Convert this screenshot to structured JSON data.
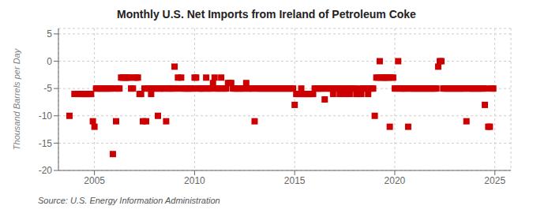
{
  "chart_data": {
    "type": "scatter",
    "title": "Monthly U.S. Net Imports from Ireland of Petroleum Coke",
    "ylabel": "Thousand Barrels per Day",
    "annotation": "Source: U.S. Energy Information Administration",
    "color": "#cc0000",
    "marker": "square",
    "grid": true,
    "xlim": [
      2003.2,
      2025.8
    ],
    "xticks": [
      2005,
      2010,
      2015,
      2020,
      2025
    ],
    "ylim": [
      -20,
      6
    ],
    "yticks": [
      5,
      0,
      -5,
      -10,
      -15,
      -20
    ],
    "x": [
      2003.75,
      2004.0,
      2004.17,
      2004.33,
      2004.42,
      2004.5,
      2004.58,
      2004.67,
      2004.75,
      2004.83,
      2004.92,
      2005.0,
      2005.08,
      2005.17,
      2005.25,
      2005.33,
      2005.42,
      2005.5,
      2005.58,
      2005.67,
      2005.75,
      2005.83,
      2005.92,
      2006.0,
      2006.08,
      2006.17,
      2006.25,
      2006.33,
      2006.42,
      2006.5,
      2006.58,
      2006.67,
      2006.75,
      2006.83,
      2006.92,
      2007.0,
      2007.08,
      2007.17,
      2007.25,
      2007.33,
      2007.42,
      2007.5,
      2007.58,
      2007.67,
      2007.75,
      2007.83,
      2007.92,
      2008.0,
      2008.08,
      2008.17,
      2008.25,
      2008.33,
      2008.42,
      2008.5,
      2008.58,
      2008.67,
      2008.75,
      2008.83,
      2008.92,
      2009.0,
      2009.08,
      2009.17,
      2009.25,
      2009.33,
      2009.42,
      2009.5,
      2009.58,
      2009.67,
      2009.75,
      2009.83,
      2009.92,
      2010.0,
      2010.08,
      2010.17,
      2010.25,
      2010.33,
      2010.42,
      2010.5,
      2010.58,
      2010.67,
      2010.75,
      2010.83,
      2010.92,
      2011.0,
      2011.08,
      2011.17,
      2011.25,
      2011.33,
      2011.42,
      2011.5,
      2011.58,
      2011.67,
      2011.75,
      2011.83,
      2011.92,
      2012.0,
      2012.08,
      2012.17,
      2012.25,
      2012.33,
      2012.42,
      2012.5,
      2012.58,
      2012.67,
      2012.75,
      2012.83,
      2012.92,
      2013.0,
      2013.08,
      2013.17,
      2013.25,
      2013.33,
      2013.42,
      2013.5,
      2013.58,
      2013.67,
      2013.75,
      2013.83,
      2013.92,
      2014.0,
      2014.08,
      2014.17,
      2014.25,
      2014.33,
      2014.42,
      2014.5,
      2014.58,
      2014.67,
      2014.75,
      2014.83,
      2014.92,
      2015.0,
      2015.08,
      2015.17,
      2015.25,
      2015.33,
      2015.42,
      2015.5,
      2015.58,
      2015.67,
      2015.75,
      2015.83,
      2015.92,
      2016.0,
      2016.08,
      2016.17,
      2016.25,
      2016.33,
      2016.42,
      2016.5,
      2016.58,
      2016.67,
      2016.75,
      2016.83,
      2016.92,
      2017.0,
      2017.08,
      2017.17,
      2017.25,
      2017.33,
      2017.42,
      2017.5,
      2017.58,
      2017.67,
      2017.75,
      2017.83,
      2017.92,
      2018.0,
      2018.08,
      2018.17,
      2018.25,
      2018.33,
      2018.42,
      2018.5,
      2018.58,
      2018.67,
      2018.75,
      2018.83,
      2018.92,
      2019.0,
      2019.08,
      2019.17,
      2019.25,
      2019.33,
      2019.42,
      2019.5,
      2019.58,
      2019.67,
      2019.75,
      2019.83,
      2019.92,
      2020.0,
      2020.08,
      2020.17,
      2020.25,
      2020.33,
      2020.42,
      2020.5,
      2020.58,
      2020.67,
      2020.75,
      2020.83,
      2020.92,
      2021.0,
      2021.08,
      2021.17,
      2021.25,
      2021.33,
      2021.42,
      2021.5,
      2021.58,
      2021.67,
      2021.75,
      2021.83,
      2021.92,
      2022.0,
      2022.08,
      2022.17,
      2022.25,
      2022.33,
      2022.42,
      2022.5,
      2022.58,
      2022.67,
      2022.75,
      2022.83,
      2022.92,
      2023.0,
      2023.08,
      2023.17,
      2023.25,
      2023.33,
      2023.42,
      2023.5,
      2023.58,
      2023.67,
      2023.75,
      2023.83,
      2023.92,
      2024.0,
      2024.08,
      2024.17,
      2024.25,
      2024.33,
      2024.42,
      2024.5,
      2024.58,
      2024.67,
      2024.75,
      2024.83,
      2024.92
    ],
    "values": [
      -10,
      -6,
      -6,
      -6,
      -6,
      -6,
      -6,
      -6,
      -6,
      -6,
      -11,
      -12,
      -5,
      -5,
      -5,
      -5,
      -5,
      -5,
      -5,
      -5,
      -5,
      -5,
      -17,
      -5,
      -11,
      -5,
      -5,
      -3,
      -3,
      -3,
      -3,
      -3,
      -3,
      -5,
      -5,
      -3,
      -3,
      -3,
      -6,
      -6,
      -11,
      -5,
      -11,
      -5,
      -5,
      -6,
      -5,
      -5,
      -5,
      -10,
      -5,
      -5,
      -5,
      -5,
      -11,
      -5,
      -5,
      -5,
      -5,
      -1,
      -5,
      -3,
      -5,
      -3,
      -5,
      -5,
      -5,
      -5,
      -5,
      -5,
      -5,
      -3,
      -3,
      -5,
      -5,
      -5,
      -5,
      -5,
      -3,
      -5,
      -5,
      -5,
      -4,
      -3,
      -5,
      -5,
      -5,
      -3,
      -5,
      -5,
      -5,
      -4,
      -4,
      -4,
      -5,
      -5,
      -5,
      -5,
      -5,
      -5,
      -5,
      -5,
      -4,
      -5,
      -5,
      -5,
      -5,
      -11,
      -5,
      -5,
      -5,
      -5,
      -5,
      -5,
      -5,
      -5,
      -5,
      -5,
      -5,
      -5,
      -5,
      -5,
      -5,
      -5,
      -5,
      -5,
      -5,
      -5,
      -5,
      -5,
      -5,
      -8,
      -6,
      -6,
      -6,
      -5,
      -6,
      -6,
      -6,
      -6,
      -6,
      -6,
      -6,
      -5,
      -5,
      -5,
      -5,
      -5,
      -5,
      -7,
      -5,
      -5,
      -5,
      -5,
      -6,
      -5,
      -5,
      -5,
      -6,
      -5,
      -5,
      -6,
      -5,
      -5,
      -6,
      -5,
      -5,
      -5,
      -6,
      -6,
      -5,
      -6,
      -5,
      -5,
      -5,
      -6,
      -5,
      -5,
      -5,
      -10,
      -3,
      -3,
      0,
      -3,
      -3,
      -3,
      -3,
      -3,
      -12,
      -3,
      -3,
      -5,
      -5,
      0,
      -5,
      -5,
      -5,
      -5,
      -5,
      -12,
      -5,
      -5,
      -5,
      -5,
      -5,
      -5,
      -5,
      -5,
      -5,
      -5,
      -5,
      -5,
      -5,
      -5,
      -5,
      -5,
      -5,
      -1,
      0,
      0,
      -5,
      -5,
      -5,
      -5,
      -5,
      -5,
      -5,
      -5,
      -5,
      -5,
      -5,
      -5,
      -5,
      -5,
      -11,
      -5,
      -5,
      -5,
      -5,
      -5,
      -5,
      -5,
      -5,
      -5,
      -5,
      -8,
      -5,
      -12,
      -12,
      -5,
      -5
    ]
  }
}
